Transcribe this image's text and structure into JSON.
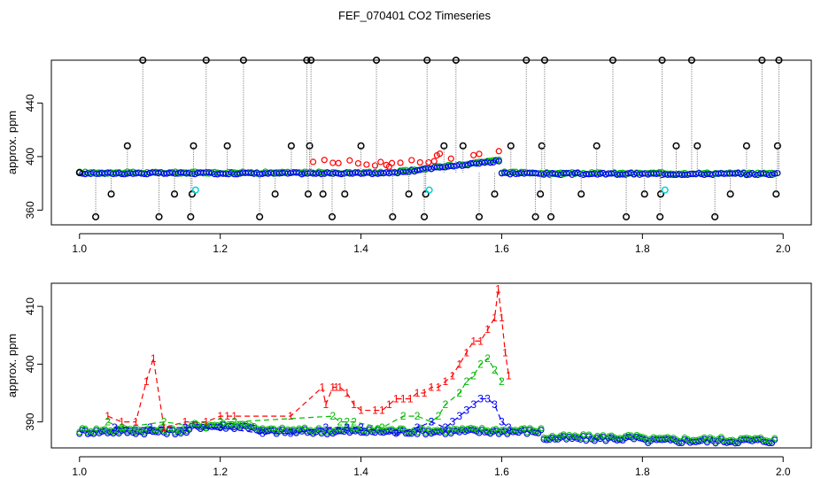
{
  "figure_title": "FEF_070401  CO2 Timeseries",
  "chart_data": [
    {
      "type": "scatter",
      "title": "",
      "xlabel": "",
      "ylabel": "approx. ppm",
      "xlim": [
        0.96,
        2.04
      ],
      "ylim": [
        349,
        472
      ],
      "xticks": [
        1.0,
        1.2,
        1.4,
        1.6,
        1.8,
        2.0
      ],
      "xtick_labels": [
        "1.0",
        "1.2",
        "1.4",
        "1.6",
        "1.8",
        "2.0"
      ],
      "yticks": [
        360,
        400,
        440
      ],
      "ytick_labels": [
        "360",
        "400",
        "440"
      ],
      "grid": false,
      "legend": "none",
      "colors": {
        "black": "#000000",
        "red": "#ff0000",
        "green": "#00bb00",
        "blue": "#0000ff",
        "cyan": "#00d0d0",
        "connector": "#888888"
      },
      "series": [
        {
          "color": "black",
          "x": [
            1.0,
            1.023,
            1.045,
            1.068,
            1.09,
            1.113,
            1.135,
            1.158,
            1.16,
            1.162,
            1.18,
            1.21,
            1.233,
            1.256,
            1.278,
            1.301,
            1.323,
            1.325,
            1.327,
            1.329,
            1.346,
            1.359,
            1.377,
            1.4,
            1.422,
            1.445,
            1.468,
            1.49,
            1.492,
            1.494,
            1.518,
            1.535,
            1.545,
            1.568,
            1.59,
            1.613,
            1.635,
            1.648,
            1.655,
            1.657,
            1.661,
            1.67,
            1.713,
            1.735,
            1.758,
            1.777,
            1.803,
            1.825,
            1.826,
            1.828,
            1.848,
            1.87,
            1.878,
            1.903,
            1.925,
            1.948,
            1.97,
            1.99,
            1.992,
            1.994
          ],
          "y": [
            388,
            355,
            372,
            408,
            472,
            355,
            372,
            355,
            372,
            408,
            472,
            408,
            472,
            355,
            372,
            408,
            472,
            372,
            408,
            472,
            372,
            355,
            372,
            408,
            472,
            355,
            372,
            355,
            372,
            472,
            408,
            472,
            408,
            355,
            372,
            408,
            472,
            355,
            372,
            408,
            472,
            355,
            372,
            408,
            472,
            355,
            372,
            355,
            372,
            472,
            408,
            472,
            408,
            355,
            372,
            408,
            472,
            372,
            408,
            472
          ]
        },
        {
          "color": "cyan",
          "x": [
            1.165,
            1.497,
            1.832
          ],
          "y": [
            375,
            375,
            375
          ]
        }
      ]
    },
    {
      "type": "line",
      "title": "",
      "xlabel": "",
      "ylabel": "approx. ppm",
      "xlim": [
        0.96,
        2.04
      ],
      "ylim": [
        385.5,
        414
      ],
      "xticks": [
        1.0,
        1.2,
        1.4,
        1.6,
        1.8,
        2.0
      ],
      "xtick_labels": [
        "1.0",
        "1.2",
        "1.4",
        "1.6",
        "1.8",
        "2.0"
      ],
      "yticks": [
        390,
        400,
        410
      ],
      "ytick_labels": [
        "390",
        "400",
        "410"
      ],
      "grid": false,
      "legend": "none",
      "colors": {
        "1": "#ff0000",
        "2": "#00bb00",
        "3": "#0000ff"
      },
      "series": [
        {
          "name": "1",
          "symbol": "1",
          "x": [
            1.04,
            1.06,
            1.08,
            1.095,
            1.105,
            1.12,
            1.15,
            1.18,
            1.2,
            1.21,
            1.22,
            1.3,
            1.345,
            1.35,
            1.36,
            1.365,
            1.37,
            1.38,
            1.39,
            1.4,
            1.42,
            1.43,
            1.44,
            1.45,
            1.46,
            1.47,
            1.48,
            1.49,
            1.5,
            1.51,
            1.52,
            1.53,
            1.54,
            1.55,
            1.56,
            1.57,
            1.58,
            1.59,
            1.595,
            1.6,
            1.605,
            1.61
          ],
          "y": [
            391,
            390,
            390,
            397,
            401,
            389,
            390,
            390,
            391,
            391,
            391,
            391,
            396,
            393,
            396,
            396,
            396,
            395,
            393,
            392,
            392,
            392,
            393,
            394,
            394,
            394,
            395,
            395,
            396,
            396,
            397,
            398,
            400,
            402,
            404,
            404,
            406,
            408,
            413,
            408,
            402,
            398
          ]
        },
        {
          "name": "2",
          "symbol": "2",
          "x": [
            1.04,
            1.06,
            1.12,
            1.18,
            1.2,
            1.22,
            1.36,
            1.37,
            1.38,
            1.39,
            1.43,
            1.46,
            1.48,
            1.5,
            1.51,
            1.52,
            1.54,
            1.55,
            1.56,
            1.57,
            1.58,
            1.59,
            1.6
          ],
          "y": [
            390,
            389,
            390,
            389,
            390,
            390,
            391,
            390,
            390,
            390,
            389,
            391,
            391,
            390,
            391,
            393,
            395,
            397,
            398,
            400,
            401,
            399,
            397
          ]
        },
        {
          "name": "3",
          "symbol": "3",
          "x": [
            1.05,
            1.1,
            1.15,
            1.2,
            1.26,
            1.3,
            1.35,
            1.38,
            1.4,
            1.45,
            1.48,
            1.5,
            1.52,
            1.53,
            1.54,
            1.55,
            1.56,
            1.57,
            1.58,
            1.59,
            1.6,
            1.61
          ],
          "y": [
            389,
            389,
            389,
            389,
            388,
            388,
            389,
            389,
            389,
            388,
            389,
            390,
            389,
            390,
            391,
            392,
            393,
            394,
            394,
            393,
            390,
            389
          ]
        }
      ]
    }
  ]
}
